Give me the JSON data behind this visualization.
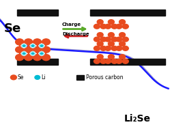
{
  "fig_width": 2.49,
  "fig_height": 1.89,
  "dpi": 100,
  "bg_color": "#ffffff",
  "se_label": "Se",
  "li2se_label": "Li₂Se",
  "se_color": "#e84c1f",
  "li_color": "#00bcd4",
  "carbon_color": "#111111",
  "arrow_charge_color": "#5aaa2a",
  "arrow_discharge_color": "#cc2222",
  "curve_color": "#1a1aff",
  "curve_color2": "#aaaacc",
  "legend_se_label": "Se",
  "legend_li_label": "Li",
  "legend_carbon_label": "Porous carbon",
  "charge_label": "Charge",
  "discharge_label": "Discharge"
}
